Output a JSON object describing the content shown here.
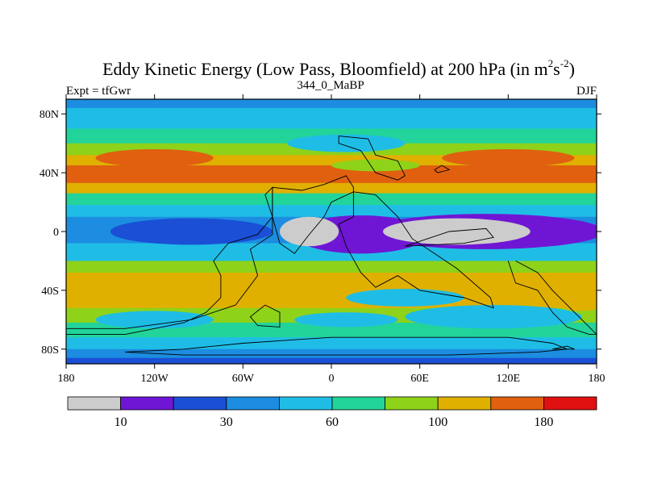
{
  "chart_data": {
    "type": "heatmap",
    "title": {
      "main": "Eddy Kinetic Energy (Low Pass, Bloomfield) at 200 hPa (in m",
      "sup1": "2",
      "mid": "s",
      "sup2": "-2",
      "end": ")"
    },
    "left_label": "Expt = tfGwr",
    "center_label": "344_0_MaBP",
    "right_label": "DJF",
    "x_ticks": [
      {
        "value": -180,
        "label": "180"
      },
      {
        "value": -120,
        "label": "120W"
      },
      {
        "value": -60,
        "label": "60W"
      },
      {
        "value": 0,
        "label": "0"
      },
      {
        "value": 60,
        "label": "60E"
      },
      {
        "value": 120,
        "label": "120E"
      },
      {
        "value": 180,
        "label": "180"
      }
    ],
    "y_ticks": [
      {
        "value": 80,
        "label": "80N"
      },
      {
        "value": 40,
        "label": "40N"
      },
      {
        "value": 0,
        "label": "0"
      },
      {
        "value": -40,
        "label": "40S"
      },
      {
        "value": -80,
        "label": "80S"
      }
    ],
    "xlim": [
      -180,
      180
    ],
    "ylim": [
      -90,
      90
    ],
    "levels": [
      0,
      10,
      20,
      30,
      45,
      60,
      80,
      100,
      140,
      180,
      220
    ],
    "colorbar_labels": [
      {
        "value": 10,
        "label": "10"
      },
      {
        "value": 30,
        "label": "30"
      },
      {
        "value": 60,
        "label": "60"
      },
      {
        "value": 100,
        "label": "100"
      },
      {
        "value": 180,
        "label": "180"
      }
    ],
    "colors": [
      "#cccccc",
      "#6f16d4",
      "#1a4fd6",
      "#1c8de0",
      "#1fbde6",
      "#22d49a",
      "#8ed219",
      "#e0b000",
      "#e06010",
      "#e01010"
    ],
    "bands": [
      {
        "lat": [
          90,
          84
        ],
        "value": 30
      },
      {
        "lat": [
          84,
          70
        ],
        "value": 55
      },
      {
        "lat": [
          70,
          60
        ],
        "value": 70
      },
      {
        "lat": [
          60,
          52
        ],
        "value": 90
      },
      {
        "lat": [
          52,
          45
        ],
        "value": 120
      },
      {
        "lat": [
          45,
          33
        ],
        "value": 170
      },
      {
        "lat": [
          33,
          26
        ],
        "value": 110
      },
      {
        "lat": [
          26,
          18
        ],
        "value": 75
      },
      {
        "lat": [
          18,
          10
        ],
        "value": 50
      },
      {
        "lat": [
          10,
          -8
        ],
        "value": 35
      },
      {
        "lat": [
          -8,
          -20
        ],
        "value": 50
      },
      {
        "lat": [
          -20,
          -28
        ],
        "value": 90
      },
      {
        "lat": [
          -28,
          -52
        ],
        "value": 110
      },
      {
        "lat": [
          -52,
          -62
        ],
        "value": 85
      },
      {
        "lat": [
          -62,
          -72
        ],
        "value": 60
      },
      {
        "lat": [
          -72,
          -80
        ],
        "value": 50
      },
      {
        "lat": [
          -80,
          -86
        ],
        "value": 35
      },
      {
        "lat": [
          -86,
          -90
        ],
        "value": 25
      }
    ],
    "features": [
      {
        "shape": "ellipse",
        "lon": -95,
        "lat": 0,
        "rlon": 55,
        "rlat": 9,
        "value": 25
      },
      {
        "shape": "ellipse",
        "lon": 20,
        "lat": -2,
        "rlon": 45,
        "rlat": 13,
        "value": 15
      },
      {
        "shape": "ellipse",
        "lon": 105,
        "lat": 0,
        "rlon": 80,
        "rlat": 12,
        "value": 15
      },
      {
        "shape": "ellipse",
        "lon": -15,
        "lat": 0,
        "rlon": 20,
        "rlat": 10,
        "value": 5
      },
      {
        "shape": "ellipse",
        "lon": 85,
        "lat": 0,
        "rlon": 50,
        "rlat": 9,
        "value": 5
      },
      {
        "shape": "ellipse",
        "lon": 10,
        "lat": 60,
        "rlon": 40,
        "rlat": 6,
        "value": 55
      },
      {
        "shape": "ellipse",
        "lon": -120,
        "lat": 50,
        "rlon": 40,
        "rlat": 6,
        "value": 140
      },
      {
        "shape": "ellipse",
        "lon": 120,
        "lat": 50,
        "rlon": 45,
        "rlat": 6,
        "value": 140
      },
      {
        "shape": "ellipse",
        "lon": 30,
        "lat": 45,
        "rlon": 30,
        "rlat": 4,
        "value": 90
      },
      {
        "shape": "ellipse",
        "lon": 50,
        "lat": -45,
        "rlon": 40,
        "rlat": 6,
        "value": 55
      },
      {
        "shape": "ellipse",
        "lon": 110,
        "lat": -58,
        "rlon": 60,
        "rlat": 8,
        "value": 55
      },
      {
        "shape": "ellipse",
        "lon": 10,
        "lat": -60,
        "rlon": 35,
        "rlat": 5,
        "value": 55
      },
      {
        "shape": "ellipse",
        "lon": -120,
        "lat": -60,
        "rlon": 40,
        "rlat": 6,
        "value": 55
      },
      {
        "shape": "ellipse",
        "lon": 170,
        "lat": -48,
        "rlon": 18,
        "rlat": 6,
        "value": 120
      }
    ],
    "coastlines": [
      [
        [
          -140,
          -82
        ],
        [
          -100,
          -80
        ],
        [
          -60,
          -76
        ],
        [
          -30,
          -74
        ],
        [
          0,
          -72
        ],
        [
          40,
          -72
        ],
        [
          80,
          -72
        ],
        [
          120,
          -72
        ],
        [
          150,
          -76
        ],
        [
          160,
          -80
        ],
        [
          140,
          -82
        ],
        [
          80,
          -84
        ],
        [
          20,
          -84
        ],
        [
          -40,
          -84
        ],
        [
          -100,
          -84
        ],
        [
          -140,
          -82
        ]
      ],
      [
        [
          -180,
          -70
        ],
        [
          -140,
          -70
        ],
        [
          -120,
          -66
        ],
        [
          -100,
          -62
        ],
        [
          -85,
          -55
        ],
        [
          -75,
          -45
        ],
        [
          -75,
          -30
        ],
        [
          -80,
          -20
        ],
        [
          -70,
          -8
        ],
        [
          -50,
          -2
        ],
        [
          -40,
          10
        ],
        [
          -45,
          25
        ],
        [
          -40,
          30
        ],
        [
          -40,
          -2
        ],
        [
          -55,
          -12
        ],
        [
          -50,
          -30
        ],
        [
          -65,
          -50
        ],
        [
          -95,
          -60
        ],
        [
          -140,
          -66
        ],
        [
          -180,
          -66
        ]
      ],
      [
        [
          -45,
          -50
        ],
        [
          -35,
          -55
        ],
        [
          -35,
          -65
        ],
        [
          -50,
          -64
        ],
        [
          -55,
          -58
        ],
        [
          -45,
          -50
        ]
      ],
      [
        [
          5,
          65
        ],
        [
          25,
          63
        ],
        [
          30,
          52
        ],
        [
          45,
          48
        ],
        [
          50,
          38
        ],
        [
          45,
          35
        ],
        [
          30,
          40
        ],
        [
          20,
          55
        ],
        [
          5,
          60
        ],
        [
          5,
          65
        ]
      ],
      [
        [
          -40,
          30
        ],
        [
          -20,
          28
        ],
        [
          -5,
          32
        ],
        [
          10,
          38
        ],
        [
          15,
          30
        ],
        [
          15,
          10
        ],
        [
          5,
          5
        ],
        [
          10,
          -10
        ],
        [
          20,
          -28
        ],
        [
          30,
          -38
        ],
        [
          45,
          -30
        ],
        [
          60,
          -40
        ],
        [
          90,
          -45
        ],
        [
          110,
          -52
        ],
        [
          108,
          -45
        ],
        [
          85,
          -25
        ],
        [
          70,
          -15
        ],
        [
          55,
          -5
        ],
        [
          45,
          10
        ],
        [
          30,
          25
        ],
        [
          15,
          27
        ],
        [
          0,
          20
        ],
        [
          -5,
          10
        ],
        [
          -15,
          -2
        ],
        [
          -25,
          -15
        ],
        [
          -35,
          -8
        ],
        [
          -40,
          10
        ],
        [
          -40,
          30
        ]
      ],
      [
        [
          50,
          -10
        ],
        [
          90,
          -8
        ],
        [
          110,
          -4
        ],
        [
          105,
          2
        ],
        [
          80,
          0
        ],
        [
          50,
          -10
        ]
      ],
      [
        [
          120,
          -20
        ],
        [
          125,
          -35
        ],
        [
          140,
          -40
        ],
        [
          150,
          -55
        ],
        [
          160,
          -65
        ],
        [
          175,
          -70
        ],
        [
          180,
          -70
        ],
        [
          170,
          -60
        ],
        [
          160,
          -50
        ],
        [
          150,
          -40
        ],
        [
          140,
          -28
        ],
        [
          125,
          -20
        ]
      ],
      [
        [
          150,
          -80
        ],
        [
          160,
          -78
        ],
        [
          165,
          -80
        ],
        [
          150,
          -80
        ]
      ],
      [
        [
          70,
          42
        ],
        [
          75,
          45
        ],
        [
          80,
          42
        ],
        [
          72,
          40
        ],
        [
          70,
          42
        ]
      ]
    ]
  }
}
